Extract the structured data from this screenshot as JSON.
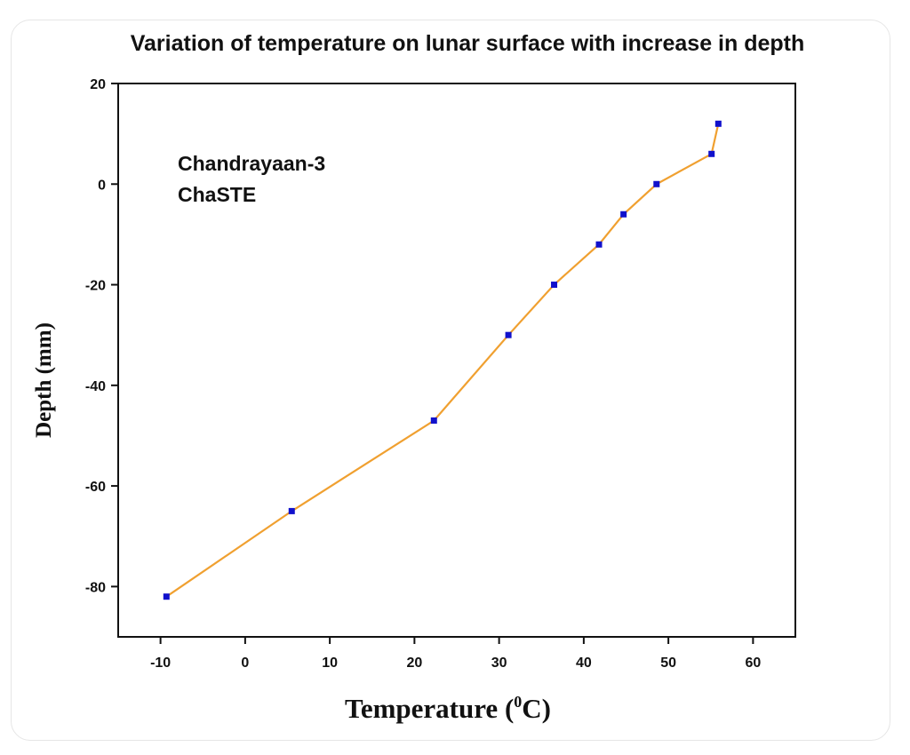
{
  "chart_data": {
    "type": "line",
    "title": "Variation of temperature on lunar surface with increase in depth",
    "xlabel": {
      "main": "Temperature (",
      "sup": "0",
      "unit": "C)"
    },
    "ylabel": "Depth (mm)",
    "xlim": [
      -15,
      65
    ],
    "ylim": [
      -90,
      20
    ],
    "xticks": [
      -10,
      0,
      10,
      20,
      30,
      40,
      50,
      60
    ],
    "yticks": [
      -80,
      -60,
      -40,
      -20,
      0,
      20
    ],
    "annotations": [
      "Chandrayaan-3",
      "ChaSTE"
    ],
    "grid": false,
    "series": [
      {
        "line_color": "#f0a030",
        "marker_color": "#1010cc",
        "points": [
          {
            "x": -9.3,
            "y": -82
          },
          {
            "x": 5.5,
            "y": -65
          },
          {
            "x": 22.3,
            "y": -47
          },
          {
            "x": 31.1,
            "y": -30
          },
          {
            "x": 36.5,
            "y": -20
          },
          {
            "x": 41.8,
            "y": -12
          },
          {
            "x": 44.7,
            "y": -6
          },
          {
            "x": 48.6,
            "y": 0
          },
          {
            "x": 55.1,
            "y": 6
          },
          {
            "x": 55.9,
            "y": 12
          }
        ]
      }
    ]
  }
}
